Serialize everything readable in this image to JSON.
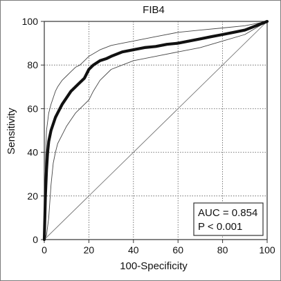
{
  "chart_data": {
    "type": "line",
    "title": "FIB4",
    "xlabel": "100-Specificity",
    "ylabel": "Sensitivity",
    "xlim": [
      0,
      100
    ],
    "ylim": [
      0,
      100
    ],
    "x_ticks": [
      0,
      20,
      40,
      60,
      80,
      100
    ],
    "y_ticks": [
      0,
      20,
      40,
      60,
      80,
      100
    ],
    "grid": "dotted",
    "annotation": {
      "auc": "AUC = 0.854",
      "p": "P < 0.001",
      "placement": "bottom-right"
    },
    "series": [
      {
        "role": "roc",
        "x": [
          0,
          0.5,
          1,
          1.5,
          2,
          3,
          4,
          5,
          6,
          7,
          8,
          10,
          12,
          14,
          16,
          18,
          20,
          22,
          25,
          28,
          30,
          35,
          40,
          45,
          50,
          55,
          60,
          65,
          70,
          75,
          80,
          85,
          90,
          95,
          100
        ],
        "y": [
          0,
          20,
          32,
          40,
          45,
          50,
          53,
          56,
          58,
          60,
          62,
          65,
          68,
          70,
          72,
          74,
          78,
          80,
          82,
          83,
          84,
          86,
          87,
          88,
          88.5,
          89.5,
          90,
          91,
          92,
          93,
          94,
          95,
          96,
          98,
          100
        ]
      },
      {
        "role": "ci-upper",
        "x": [
          0,
          0.5,
          1,
          2,
          3,
          4,
          5,
          6,
          8,
          10,
          12,
          14,
          16,
          18,
          20,
          25,
          30,
          35,
          40,
          50,
          60,
          70,
          80,
          90,
          100
        ],
        "y": [
          0,
          35,
          50,
          58,
          62,
          65,
          68,
          70,
          73,
          75,
          77,
          79,
          80,
          82,
          84,
          87,
          89,
          90,
          91,
          93,
          95,
          96,
          97,
          98,
          100
        ]
      },
      {
        "role": "ci-lower",
        "x": [
          0,
          1,
          2,
          3,
          4,
          5,
          6,
          8,
          10,
          12,
          14,
          16,
          18,
          20,
          22,
          25,
          30,
          35,
          40,
          50,
          60,
          70,
          80,
          90,
          100
        ],
        "y": [
          0,
          2,
          10,
          25,
          35,
          40,
          44,
          48,
          52,
          55,
          58,
          60,
          62,
          64,
          68,
          73,
          78,
          80,
          82,
          84,
          86,
          88,
          91,
          94,
          100
        ]
      },
      {
        "role": "reference",
        "x": [
          0,
          100
        ],
        "y": [
          0,
          100
        ]
      }
    ]
  }
}
